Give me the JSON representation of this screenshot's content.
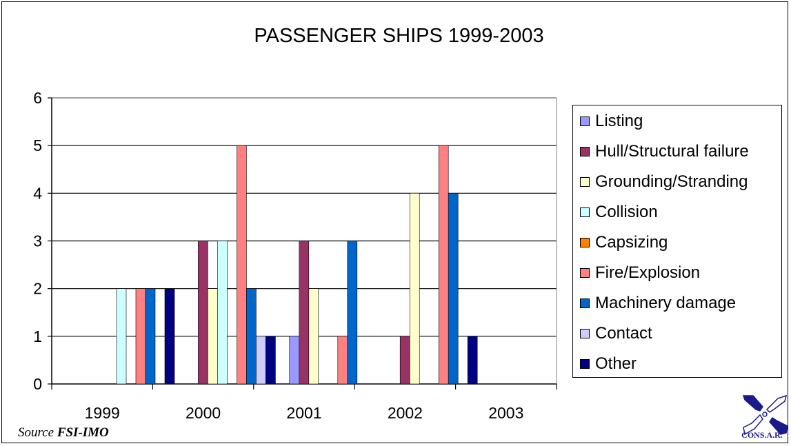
{
  "chart_data": {
    "type": "bar",
    "title": "PASSENGER SHIPS 1999-2003",
    "xlabel": "",
    "ylabel": "",
    "ylim": [
      0,
      6
    ],
    "yticks": [
      "0",
      "1",
      "2",
      "3",
      "4",
      "5",
      "6"
    ],
    "categories": [
      "1999",
      "2000",
      "2001",
      "2002",
      "2003"
    ],
    "grid": true,
    "legend_position": "right",
    "series": [
      {
        "name": "Listing",
        "color": "#9999ff",
        "values": [
          0,
          0,
          1,
          0,
          0
        ]
      },
      {
        "name": "Hull/Structural failure",
        "color": "#993366",
        "values": [
          0,
          3,
          3,
          1,
          0
        ]
      },
      {
        "name": "Grounding/Stranding",
        "color": "#ffffcc",
        "values": [
          0,
          2,
          2,
          4,
          0
        ]
      },
      {
        "name": "Collision",
        "color": "#ccffff",
        "values": [
          2,
          3,
          0,
          0,
          0
        ]
      },
      {
        "name": "Capsizing",
        "color": "#ff8000",
        "values": [
          0,
          0,
          0,
          0,
          0
        ]
      },
      {
        "name": "Fire/Explosion",
        "color": "#ff8080",
        "values": [
          2,
          5,
          1,
          5,
          0
        ]
      },
      {
        "name": "Machinery damage",
        "color": "#0066cc",
        "values": [
          2,
          2,
          3,
          4,
          0
        ]
      },
      {
        "name": "Contact",
        "color": "#ccccff",
        "values": [
          0,
          1,
          0,
          0,
          0
        ]
      },
      {
        "name": "Other",
        "color": "#000080",
        "values": [
          2,
          1,
          0,
          1,
          0
        ]
      }
    ]
  },
  "source": {
    "prefix": "Source ",
    "org": "FSI-IMO"
  },
  "logo": {
    "text": "CONS.A.R.",
    "icon": "consar-logo-icon",
    "color": "#1a1a8c"
  }
}
